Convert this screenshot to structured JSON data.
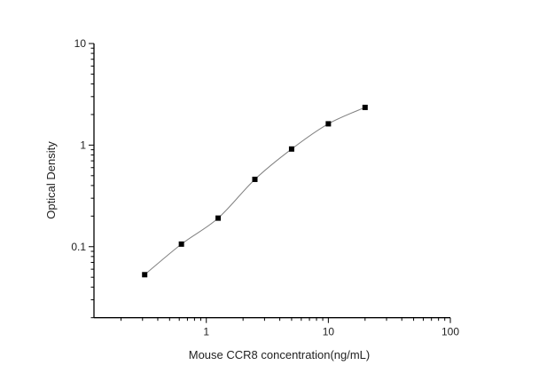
{
  "chart_data": {
    "type": "scatter",
    "title": "",
    "xlabel": "Mouse CCR8 concentration(ng/mL)",
    "ylabel": "Optical Density",
    "xscale": "log",
    "yscale": "log",
    "xlim": [
      0.12,
      100
    ],
    "ylim": [
      0.02,
      10
    ],
    "x_ticks": [
      {
        "value": 1,
        "label": "1"
      },
      {
        "value": 10,
        "label": "10"
      },
      {
        "value": 100,
        "label": "100"
      }
    ],
    "y_ticks": [
      {
        "value": 0.1,
        "label": "0.1"
      },
      {
        "value": 1,
        "label": "1"
      },
      {
        "value": 10,
        "label": "10"
      }
    ],
    "grid": false,
    "marker": "square",
    "fit_curve": true,
    "colors": {
      "points": "#000000",
      "curve": "#808080",
      "axis": "#000000"
    },
    "series": [
      {
        "x": [
          0.3125,
          0.625,
          1.25,
          2.5,
          5,
          10,
          20
        ],
        "y": [
          0.053,
          0.106,
          0.191,
          0.46,
          0.915,
          1.62,
          2.35
        ]
      }
    ]
  }
}
